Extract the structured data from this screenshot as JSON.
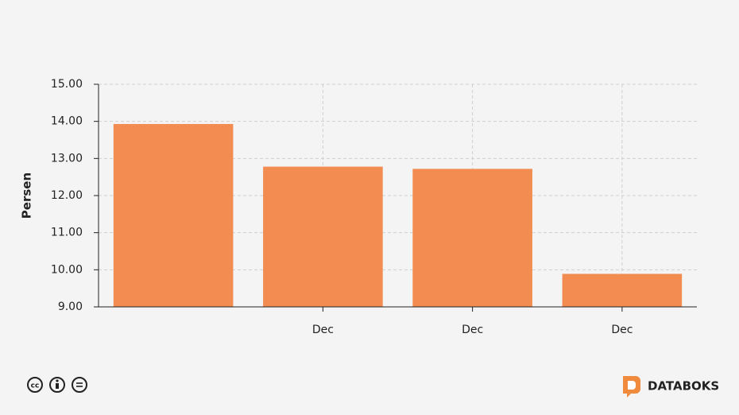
{
  "chart_data": {
    "type": "bar",
    "y_label": "Persen",
    "categories": [
      null,
      "Dec",
      "Dec",
      "Dec"
    ],
    "values": [
      13.93,
      12.78,
      12.72,
      9.89
    ],
    "color": "#f28c51",
    "ylim": [
      9,
      15
    ],
    "yticks": [
      {
        "value": 9,
        "label": "9.00"
      },
      {
        "value": 10,
        "label": "10.00"
      },
      {
        "value": 11,
        "label": "11.00"
      },
      {
        "value": 12,
        "label": "12.00"
      },
      {
        "value": 13,
        "label": "13.00"
      },
      {
        "value": 14,
        "label": "14.00"
      },
      {
        "value": 15,
        "label": "15.00"
      }
    ],
    "grid": true
  },
  "footer": {
    "brand": "DATABOKS"
  }
}
